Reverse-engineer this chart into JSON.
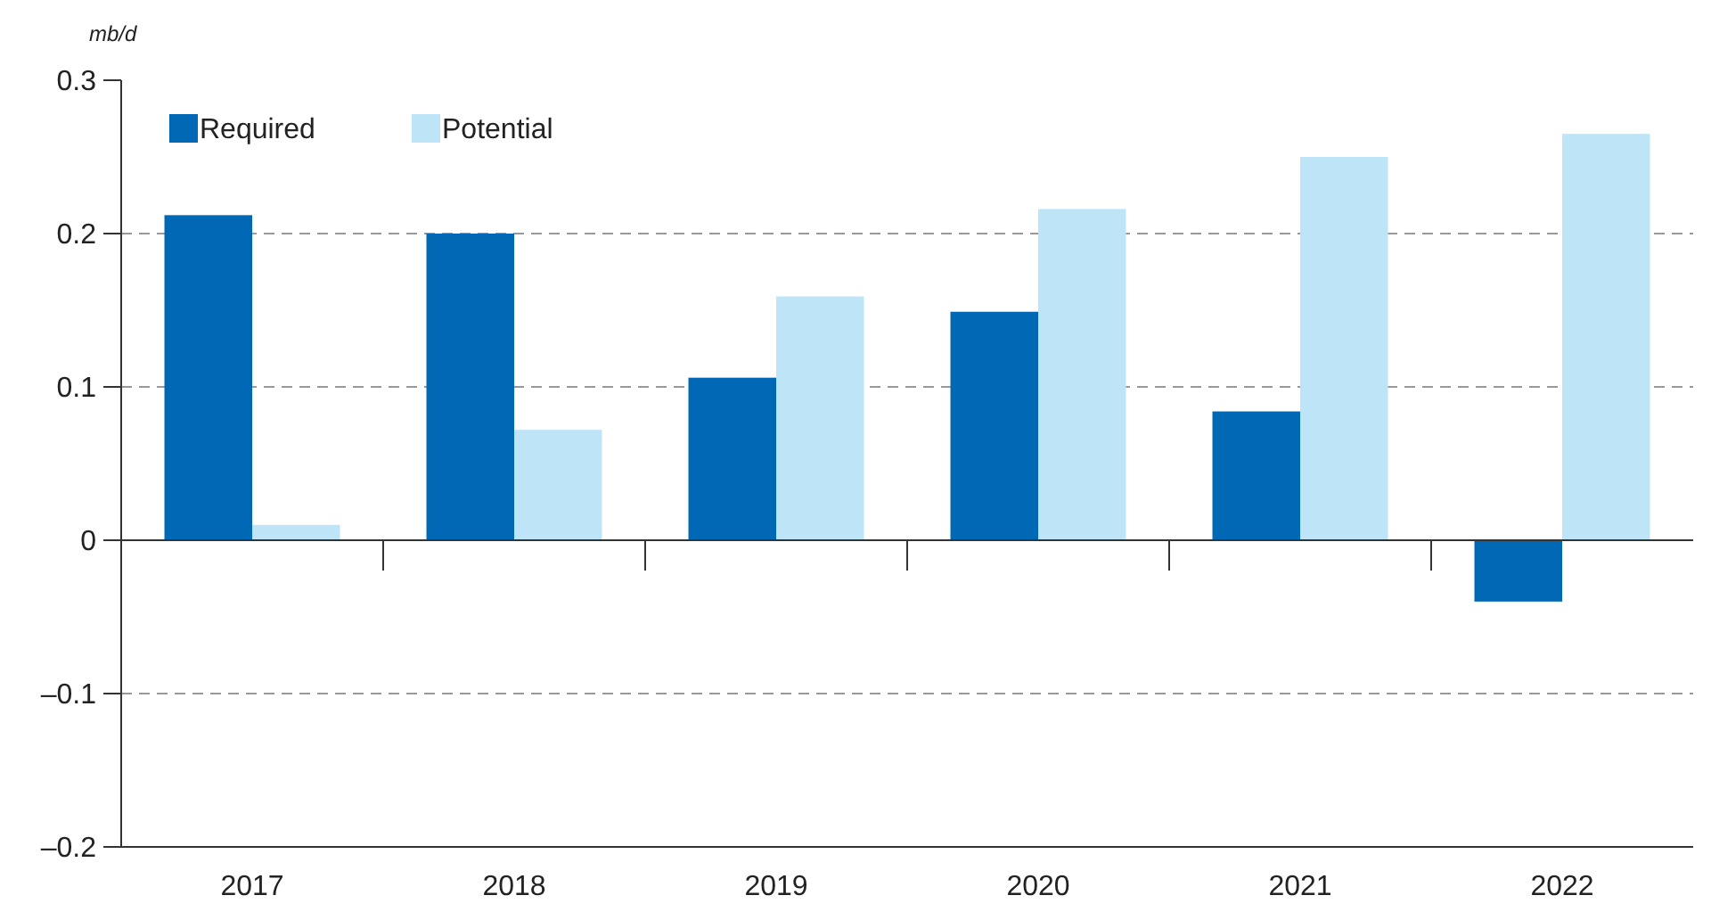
{
  "chart_data": {
    "type": "bar",
    "ylabel": "mb/d",
    "categories": [
      "2017",
      "2018",
      "2019",
      "2020",
      "2021",
      "2022"
    ],
    "series": [
      {
        "name": "Required",
        "color": "#0068b4",
        "values": [
          0.212,
          0.2,
          0.106,
          0.149,
          0.084,
          -0.04
        ]
      },
      {
        "name": "Potential",
        "color": "#bee4f8",
        "values": [
          0.01,
          0.072,
          0.159,
          0.216,
          0.25,
          0.265
        ]
      }
    ],
    "ylim": [
      -0.2,
      0.3
    ],
    "yticks": [
      {
        "value": -0.2,
        "label": "–0.2"
      },
      {
        "value": -0.1,
        "label": "–0.1"
      },
      0,
      0.1,
      0.2,
      0.3
    ],
    "grid": "y",
    "legend": "top left"
  }
}
